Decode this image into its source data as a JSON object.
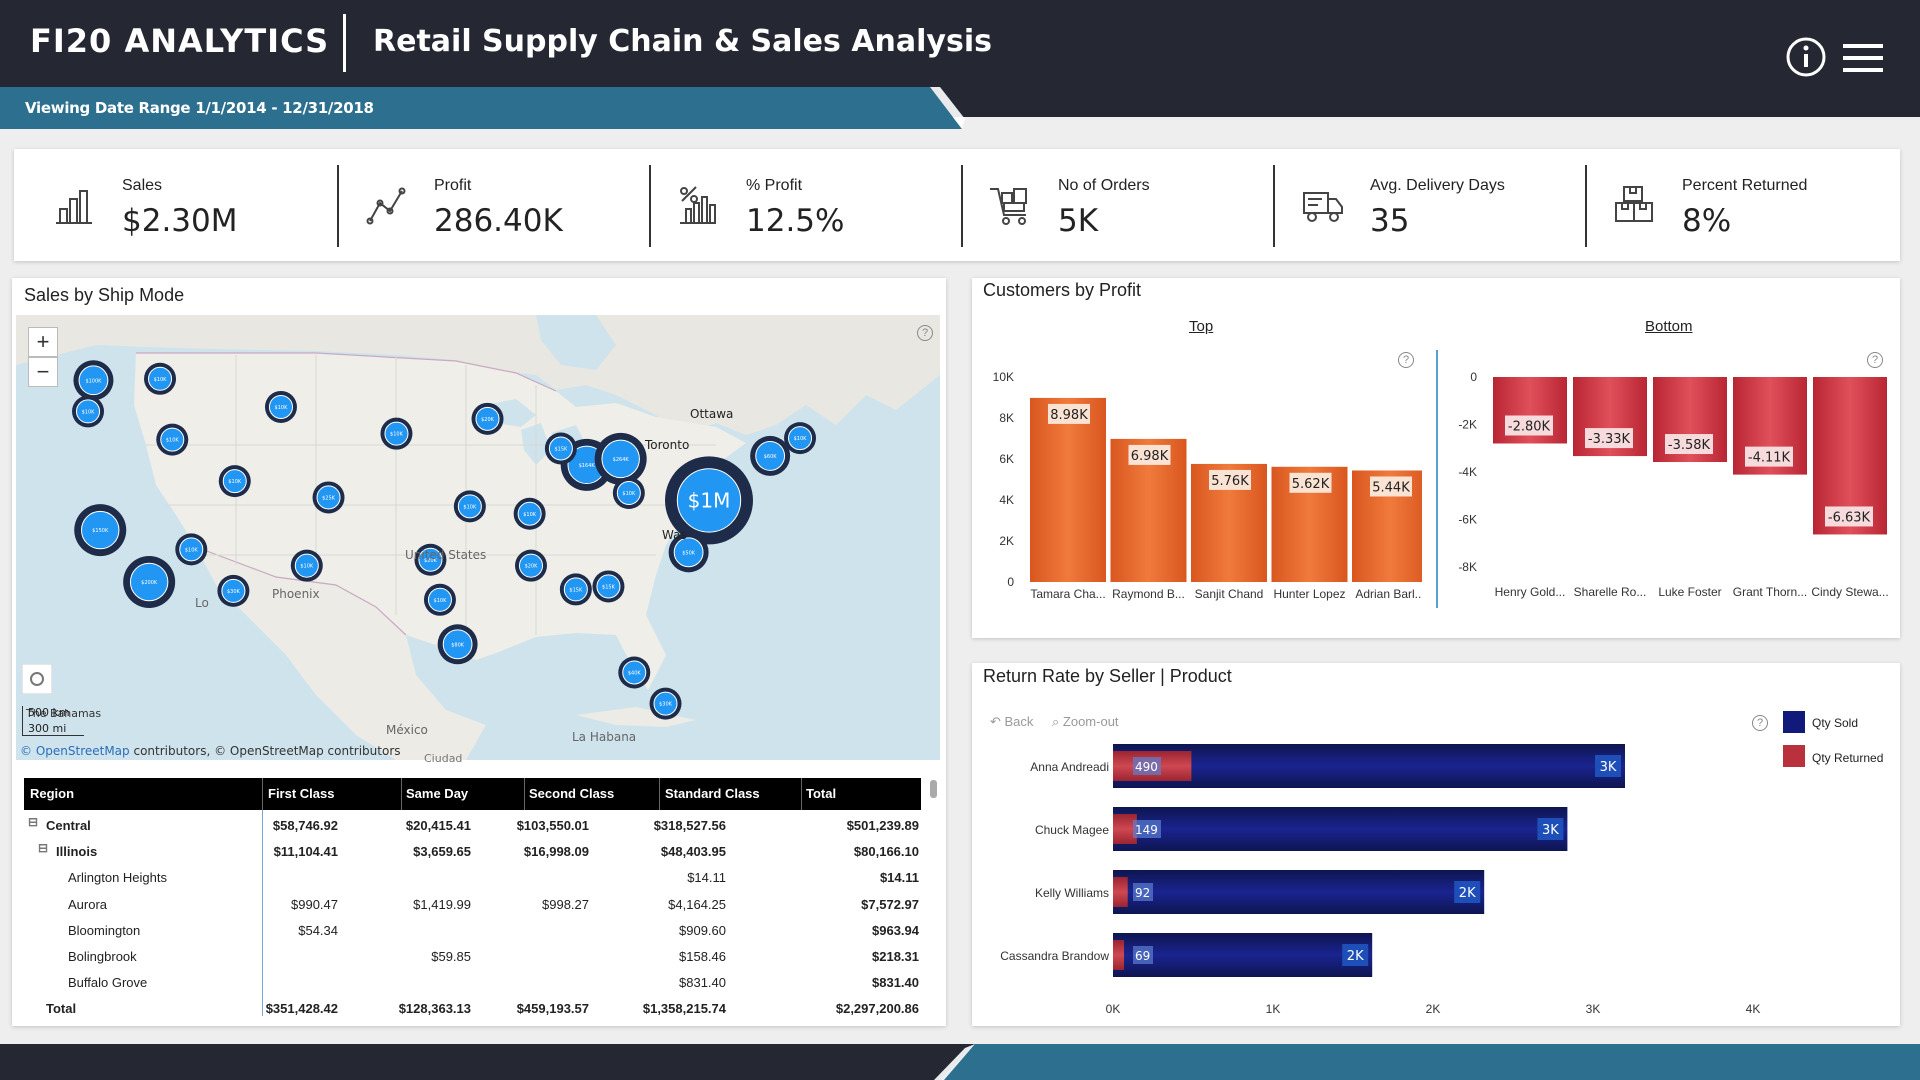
{
  "header": {
    "brand": "FI20 ANALYTICS",
    "title": "Retail Supply Chain & Sales Analysis",
    "date_range": "Viewing Date Range 1/1/2014 - 12/31/2018",
    "info_icon": "info-icon",
    "menu_icon": "hamburger-menu-icon"
  },
  "kpis": [
    {
      "label": "Sales",
      "value": "$2.30M",
      "icon": "bar-chart-icon"
    },
    {
      "label": "Profit",
      "value": "286.40K",
      "icon": "line-trend-icon"
    },
    {
      "label": "% Profit",
      "value": "12.5%",
      "icon": "percent-chart-icon"
    },
    {
      "label": "No of Orders",
      "value": "5K",
      "icon": "cart-icon"
    },
    {
      "label": "Avg. Delivery Days",
      "value": "35",
      "icon": "truck-icon"
    },
    {
      "label": "Percent Returned",
      "value": "8%",
      "icon": "boxes-icon"
    }
  ],
  "map": {
    "title": "Sales by Ship Mode",
    "zoom_in": "+",
    "zoom_out": "−",
    "scale_km": "500 km",
    "scale_mi": "300 mi",
    "attribution_link": "© OpenStreetMap",
    "attribution_rest": " contributors, © OpenStreetMap contributors",
    "place_labels": [
      "Ottawa",
      "Toronto",
      "Was",
      "United States",
      "Phoenix",
      "Lo",
      "México",
      "La Habana",
      "The Bahamas",
      "Ciudad"
    ],
    "big_bubble_label": "$1M"
  },
  "matrix": {
    "columns": [
      "Region",
      "First Class",
      "Same Day",
      "Second Class",
      "Standard Class",
      "Total"
    ],
    "rows": [
      {
        "label": "Central",
        "level": 0,
        "expand": "⊟",
        "bold": true,
        "cells": [
          "$58,746.92",
          "$20,415.41",
          "$103,550.01",
          "$318,527.56",
          "$501,239.89"
        ]
      },
      {
        "label": "Illinois",
        "level": 1,
        "expand": "⊟",
        "bold": true,
        "cells": [
          "$11,104.41",
          "$3,659.65",
          "$16,998.09",
          "$48,403.95",
          "$80,166.10"
        ]
      },
      {
        "label": "Arlington Heights",
        "level": 2,
        "expand": "",
        "bold": false,
        "cells": [
          "",
          "",
          "",
          "$14.11",
          "$14.11"
        ]
      },
      {
        "label": "Aurora",
        "level": 2,
        "expand": "",
        "bold": false,
        "cells": [
          "$990.47",
          "$1,419.99",
          "$998.27",
          "$4,164.25",
          "$7,572.97"
        ]
      },
      {
        "label": "Bloomington",
        "level": 2,
        "expand": "",
        "bold": false,
        "cells": [
          "$54.34",
          "",
          "",
          "$909.60",
          "$963.94"
        ]
      },
      {
        "label": "Bolingbrook",
        "level": 2,
        "expand": "",
        "bold": false,
        "cells": [
          "",
          "$59.85",
          "",
          "$158.46",
          "$218.31"
        ]
      },
      {
        "label": "Buffalo Grove",
        "level": 2,
        "expand": "",
        "bold": false,
        "cells": [
          "",
          "",
          "",
          "$831.40",
          "$831.40"
        ]
      },
      {
        "label": "Total",
        "level": 0,
        "expand": "",
        "bold": true,
        "cells": [
          "$351,428.42",
          "$128,363.13",
          "$459,193.57",
          "$1,358,215.74",
          "$2,297,200.86"
        ]
      }
    ]
  },
  "customers": {
    "title": "Customers by Profit",
    "top_tab": "Top",
    "bottom_tab": "Bottom",
    "help": "?"
  },
  "returns": {
    "title": "Return Rate by Seller | Product",
    "back": "Back",
    "zoom_out": "Zoom-out",
    "help": "?",
    "legend_sold": "Qty Sold",
    "legend_returned": "Qty Returned"
  },
  "chart_data": [
    {
      "type": "bar",
      "title": "Customers by Profit - Top",
      "categories": [
        "Tamara Cha...",
        "Raymond B...",
        "Sanjit Chand",
        "Hunter Lopez",
        "Adrian Barl..."
      ],
      "values": [
        8980,
        6980,
        5760,
        5620,
        5440
      ],
      "data_labels": [
        "8.98K",
        "6.98K",
        "5.76K",
        "5.62K",
        "5.44K"
      ],
      "ylim": [
        0,
        10000
      ],
      "yticks": [
        0,
        2000,
        4000,
        6000,
        8000,
        10000
      ],
      "ytick_labels": [
        "0",
        "2K",
        "4K",
        "6K",
        "8K",
        "10K"
      ],
      "color": "#e8692f"
    },
    {
      "type": "bar",
      "title": "Customers by Profit - Bottom",
      "categories": [
        "Henry Gold...",
        "Sharelle Ro...",
        "Luke Foster",
        "Grant Thorn...",
        "Cindy Stewa..."
      ],
      "values": [
        -2800,
        -3330,
        -3580,
        -4110,
        -6630
      ],
      "data_labels": [
        "-2.80K",
        "-3.33K",
        "-3.58K",
        "-4.11K",
        "-6.63K"
      ],
      "ylim": [
        -8000,
        0
      ],
      "yticks": [
        0,
        -2000,
        -4000,
        -6000,
        -8000
      ],
      "ytick_labels": [
        "0",
        "-2K",
        "-4K",
        "-6K",
        "-8K"
      ],
      "color": "#c8323d"
    },
    {
      "type": "bar",
      "orientation": "horizontal",
      "title": "Return Rate by Seller | Product",
      "categories": [
        "Anna Andreadi",
        "Chuck Magee",
        "Kelly Williams",
        "Cassandra Brandow"
      ],
      "series": [
        {
          "name": "Qty Sold",
          "values": [
            3200,
            2840,
            2320,
            1620
          ],
          "labels": [
            "3K",
            "3K",
            "2K",
            "2K"
          ],
          "color": "#111a7a"
        },
        {
          "name": "Qty Returned",
          "values": [
            490,
            149,
            92,
            69
          ],
          "labels": [
            "490",
            "149",
            "92",
            "69"
          ],
          "color": "#b8313d"
        }
      ],
      "xlim": [
        0,
        4000
      ],
      "xticks": [
        0,
        1000,
        2000,
        3000,
        4000
      ],
      "xtick_labels": [
        "0K",
        "1K",
        "2K",
        "3K",
        "4K"
      ]
    },
    {
      "type": "scatter",
      "title": "Sales by Ship Mode (bubble map)",
      "points": [
        {
          "label": "$1M",
          "value": 1000000,
          "lon": -77.0,
          "lat": 39.5
        },
        {
          "label": "$164K",
          "value": 164000,
          "lon": -86.0,
          "lat": 41.9
        },
        {
          "label": "$264K",
          "value": 264000,
          "lon": -83.5,
          "lat": 42.3
        },
        {
          "label": "$100K",
          "value": 100000,
          "lon": -122.3,
          "lat": 47.6
        },
        {
          "label": "$200K",
          "value": 200000,
          "lon": -118.2,
          "lat": 34.0
        },
        {
          "label": "$150K",
          "value": 150000,
          "lon": -121.8,
          "lat": 37.5
        },
        {
          "label": "$80K",
          "value": 80000,
          "lon": -95.5,
          "lat": 29.8
        },
        {
          "label": "$60K",
          "value": 60000,
          "lon": -72.5,
          "lat": 42.5
        },
        {
          "label": "$50K",
          "value": 50000,
          "lon": -78.5,
          "lat": 36.0
        },
        {
          "label": "$40K",
          "value": 40000,
          "lon": -82.5,
          "lat": 27.9
        },
        {
          "label": "$30K",
          "value": 30000,
          "lon": -80.2,
          "lat": 25.8
        },
        {
          "label": "$30K",
          "value": 30000,
          "lon": -112.0,
          "lat": 33.4
        },
        {
          "label": "$25K",
          "value": 25000,
          "lon": -105.0,
          "lat": 39.7
        },
        {
          "label": "$20K",
          "value": 20000,
          "lon": -97.5,
          "lat": 35.5
        },
        {
          "label": "$20K",
          "value": 20000,
          "lon": -93.3,
          "lat": 45.0
        },
        {
          "label": "$20K",
          "value": 20000,
          "lon": -90.1,
          "lat": 35.1
        },
        {
          "label": "$15K",
          "value": 15000,
          "lon": -86.8,
          "lat": 33.5
        },
        {
          "label": "$15K",
          "value": 15000,
          "lon": -84.4,
          "lat": 33.7
        },
        {
          "label": "$15K",
          "value": 15000,
          "lon": -87.9,
          "lat": 43.0
        },
        {
          "label": "$10K",
          "value": 10000,
          "lon": -96.8,
          "lat": 32.8
        },
        {
          "label": "$10K",
          "value": 10000,
          "lon": -106.6,
          "lat": 35.1
        },
        {
          "label": "$10K",
          "value": 10000,
          "lon": -116.5,
          "lat": 43.6
        },
        {
          "label": "$10K",
          "value": 10000,
          "lon": -111.9,
          "lat": 40.8
        },
        {
          "label": "$10K",
          "value": 10000,
          "lon": -122.7,
          "lat": 45.5
        },
        {
          "label": "$10K",
          "value": 10000,
          "lon": -117.4,
          "lat": 47.7
        },
        {
          "label": "$10K",
          "value": 10000,
          "lon": -108.5,
          "lat": 45.8
        },
        {
          "label": "$10K",
          "value": 10000,
          "lon": -100.0,
          "lat": 44.0
        },
        {
          "label": "$10K",
          "value": 10000,
          "lon": -94.6,
          "lat": 39.1
        },
        {
          "label": "$10K",
          "value": 10000,
          "lon": -90.2,
          "lat": 38.6
        },
        {
          "label": "$10K",
          "value": 10000,
          "lon": -115.1,
          "lat": 36.2
        },
        {
          "label": "$10K",
          "value": 10000,
          "lon": -82.9,
          "lat": 40.0
        },
        {
          "label": "$10K",
          "value": 10000,
          "lon": -70.3,
          "lat": 43.7
        }
      ]
    }
  ]
}
